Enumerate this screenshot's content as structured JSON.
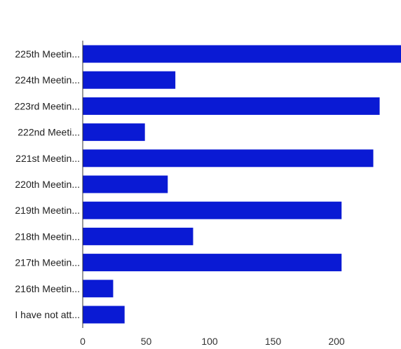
{
  "chart_data": {
    "type": "bar",
    "orientation": "horizontal",
    "title": "",
    "xlabel": "",
    "ylabel": "",
    "categories": [
      "225th Meetin...",
      "224th Meetin...",
      "223rd Meetin...",
      "222nd Meeti...",
      "221st Meetin...",
      "220th Meetin...",
      "219th Meetin...",
      "218th Meetin...",
      "217th Meetin...",
      "216th Meetin...",
      "I have not att..."
    ],
    "values": [
      252,
      73,
      234,
      49,
      229,
      67,
      204,
      87,
      204,
      24,
      33
    ],
    "xlim": [
      0,
      250
    ],
    "xticks": [
      "0",
      "50",
      "100",
      "150",
      "200"
    ],
    "bar_color": "#0a1ad4",
    "grid": false,
    "legend": "none"
  }
}
